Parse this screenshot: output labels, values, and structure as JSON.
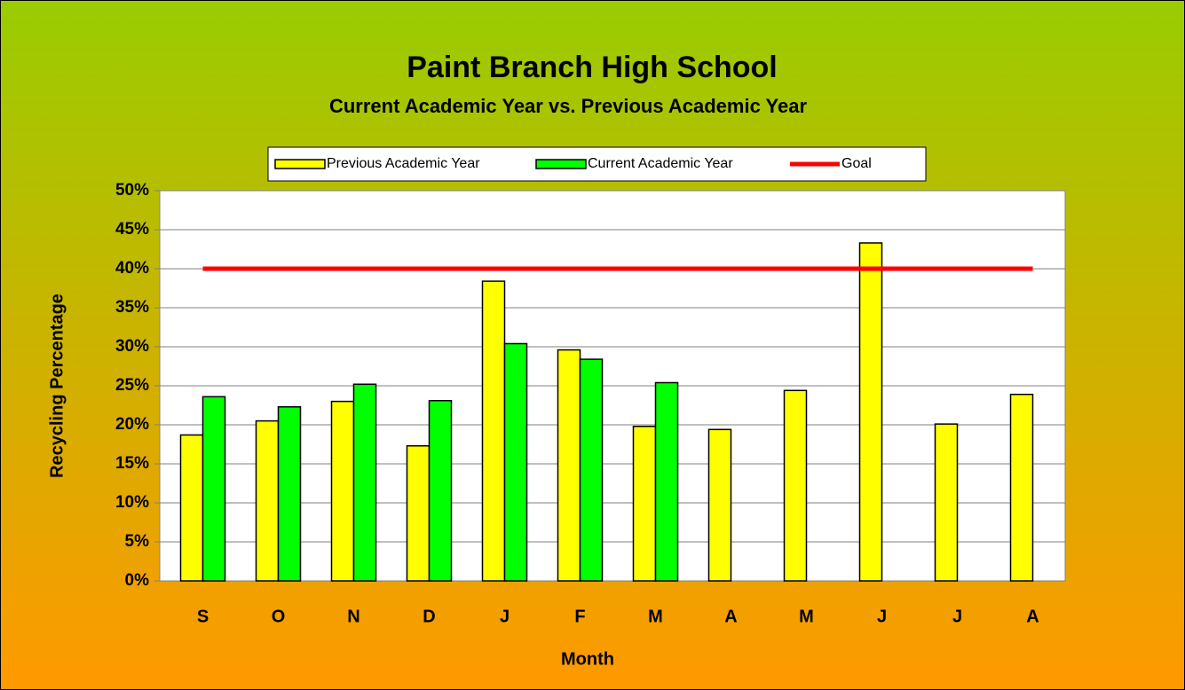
{
  "chart_data": {
    "type": "bar",
    "title": "Paint Branch High School",
    "subtitle": "Current Academic Year vs. Previous Academic Year",
    "x_label": "Month",
    "y_label": "Recycling Percentage",
    "categories": [
      "S",
      "O",
      "N",
      "D",
      "J",
      "F",
      "M",
      "A",
      "M",
      "J",
      "J",
      "A"
    ],
    "series": [
      {
        "name": "Previous Academic Year",
        "color": "#ffff00",
        "type": "bar",
        "values": [
          18.7,
          20.5,
          23.0,
          17.3,
          38.4,
          29.6,
          19.8,
          19.4,
          24.4,
          43.3,
          20.1,
          23.9
        ]
      },
      {
        "name": "Current Academic Year",
        "color": "#00ff00",
        "type": "bar",
        "values": [
          23.6,
          22.3,
          25.2,
          23.1,
          30.4,
          28.4,
          25.4,
          null,
          null,
          null,
          null,
          null
        ]
      },
      {
        "name": "Goal",
        "color": "#ff0000",
        "type": "line",
        "values": [
          40,
          40,
          40,
          40,
          40,
          40,
          40,
          40,
          40,
          40,
          40,
          40
        ]
      }
    ],
    "ylim": [
      0,
      50
    ],
    "yticks": [
      {
        "value": 0,
        "label": "0%"
      },
      {
        "value": 5,
        "label": "5%"
      },
      {
        "value": 10,
        "label": "10%"
      },
      {
        "value": 15,
        "label": "15%"
      },
      {
        "value": 20,
        "label": "20%"
      },
      {
        "value": 25,
        "label": "25%"
      },
      {
        "value": 30,
        "label": "30%"
      },
      {
        "value": 35,
        "label": "35%"
      },
      {
        "value": 40,
        "label": "40%"
      },
      {
        "value": 45,
        "label": "45%"
      },
      {
        "value": 50,
        "label": "50%"
      }
    ],
    "grid": true,
    "legend": "top"
  }
}
